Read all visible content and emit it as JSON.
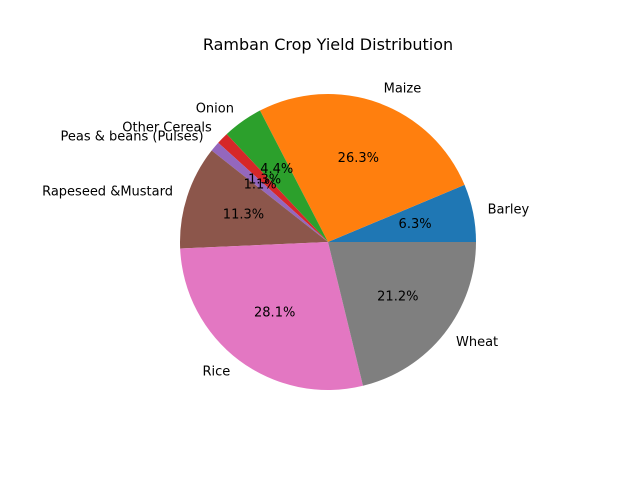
{
  "chart_data": {
    "type": "pie",
    "title": "Ramban Crop Yield Distribution",
    "categories": [
      "Barley",
      "Maize",
      "Onion",
      "Other Cereals",
      "Peas & beans (Pulses)",
      "Rapeseed &Mustard",
      "Rice",
      "Wheat"
    ],
    "values": [
      6.3,
      26.3,
      4.4,
      1.3,
      1.1,
      11.3,
      28.1,
      21.2
    ],
    "percent_labels": [
      "6.3%",
      "26.3%",
      "4.4%",
      "1.3%",
      "1.1%",
      "11.3%",
      "28.1%",
      "21.2%"
    ],
    "colors": [
      "#1f77b4",
      "#ff7f0e",
      "#2ca02c",
      "#d62728",
      "#9467bd",
      "#8c564b",
      "#e377c2",
      "#7f7f7f"
    ],
    "start_angle_deg": 0,
    "direction": "counterclockwise",
    "legend": "none"
  }
}
